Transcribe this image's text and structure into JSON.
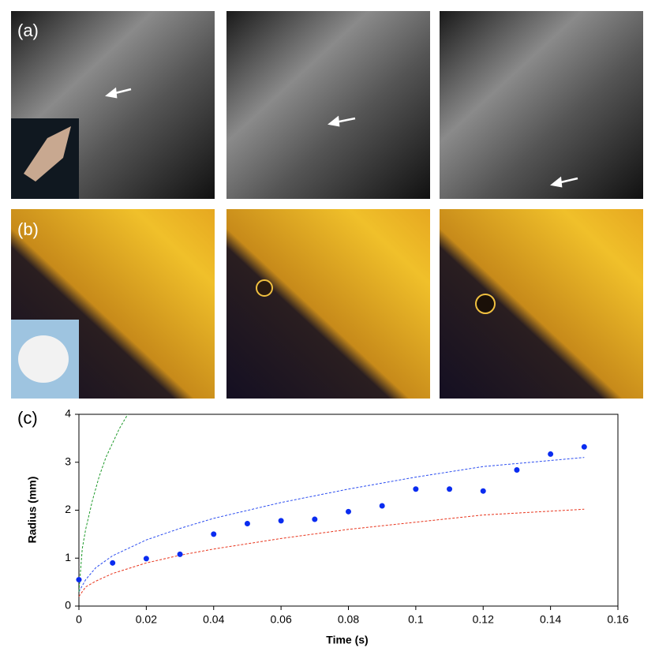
{
  "figure_labels": [
    "(a)",
    "(b)",
    "(c)"
  ],
  "chart_data": {
    "type": "scatter",
    "xlabel": "Time (s)",
    "ylabel": "Radius (mm)",
    "xlim": [
      0,
      0.16
    ],
    "xticks": [
      0,
      0.02,
      0.04,
      0.06,
      0.08,
      0.1,
      0.12,
      0.14,
      0.16
    ],
    "ylim": [
      0,
      4
    ],
    "yticks": [
      0,
      1,
      2,
      3,
      4
    ],
    "series": [
      {
        "type": "scatter",
        "color": "#0a2cf0",
        "x": [
          0,
          0.01,
          0.02,
          0.03,
          0.04,
          0.05,
          0.06,
          0.07,
          0.08,
          0.09,
          0.1,
          0.11,
          0.12,
          0.13,
          0.14,
          0.15
        ],
        "values": [
          0.55,
          0.9,
          0.99,
          1.08,
          1.5,
          1.72,
          1.78,
          1.81,
          1.97,
          2.09,
          2.44,
          2.44,
          2.4,
          2.84,
          3.17,
          3.32
        ]
      },
      {
        "type": "line",
        "color": "#2a4cf0",
        "x": [
          0,
          0.002,
          0.005,
          0.01,
          0.02,
          0.03,
          0.04,
          0.06,
          0.08,
          0.1,
          0.12,
          0.15
        ],
        "values": [
          0.3,
          0.55,
          0.8,
          1.05,
          1.38,
          1.62,
          1.83,
          2.16,
          2.44,
          2.69,
          2.91,
          3.1
        ]
      },
      {
        "type": "line",
        "color": "#e8341c",
        "x": [
          0,
          0.002,
          0.005,
          0.01,
          0.02,
          0.03,
          0.04,
          0.06,
          0.08,
          0.1,
          0.12,
          0.15
        ],
        "values": [
          0.2,
          0.4,
          0.52,
          0.68,
          0.9,
          1.06,
          1.19,
          1.41,
          1.6,
          1.75,
          1.9,
          2.02
        ]
      },
      {
        "type": "line",
        "color": "#1e9a2a",
        "x": [
          0,
          0.001,
          0.002,
          0.004,
          0.006,
          0.008,
          0.01,
          0.012,
          0.0145
        ],
        "values": [
          0.3,
          1.2,
          1.6,
          2.2,
          2.7,
          3.1,
          3.4,
          3.7,
          4
        ]
      }
    ]
  }
}
